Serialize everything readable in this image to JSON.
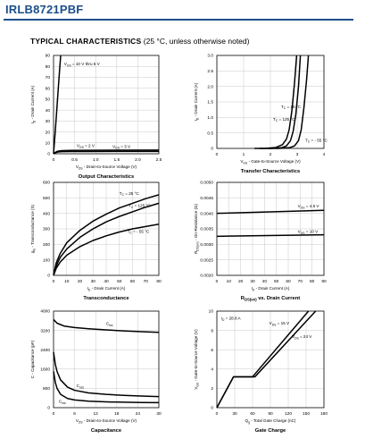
{
  "header": {
    "part_number": "IRLB8721PBF"
  },
  "section": {
    "title": "TYPICAL CHARACTERISTICS",
    "condition": "(25 °C, unless otherwise noted)"
  },
  "chart_data": [
    {
      "id": "output",
      "type": "line",
      "title": "Output Characteristics",
      "xlabel": "V_DS - Drain-to-Source Voltage (V)",
      "ylabel": "I_D - Drain Current (A)",
      "xlim": [
        0,
        2.5
      ],
      "ylim": [
        0,
        90
      ],
      "xticks": [
        "0",
        "0.5",
        "1.0",
        "1.5",
        "2.0",
        "2.5"
      ],
      "yticks": [
        "0",
        "10",
        "20",
        "30",
        "40",
        "50",
        "60",
        "70",
        "80",
        "90"
      ],
      "grid": true,
      "series": [
        {
          "x": [
            0,
            0.04,
            0.08,
            0.12,
            0.15,
            0.17
          ],
          "y": [
            0,
            20,
            42,
            64,
            80,
            90
          ]
        },
        {
          "x": [
            0,
            0.05,
            0.1,
            0.2,
            0.4,
            0.8,
            1.5,
            2.5
          ],
          "y": [
            0,
            1.5,
            2.4,
            2.9,
            3.1,
            3.2,
            3.3,
            3.4
          ]
        },
        {
          "x": [
            0,
            0.05,
            0.1,
            0.2,
            0.4,
            0.8,
            1.5,
            2.5
          ],
          "y": [
            0,
            1.0,
            1.6,
            1.9,
            2.0,
            2.05,
            2.1,
            2.15
          ]
        }
      ],
      "annotations": [
        {
          "text": "V_GS = 10 V thru 5 V",
          "x": 0.25,
          "y": 81
        },
        {
          "text": "V_GS = 2 V",
          "x": 0.55,
          "y": 6
        },
        {
          "text": "V_GS = 3 V",
          "x": 1.4,
          "y": 5.5
        }
      ]
    },
    {
      "id": "transfer",
      "type": "line",
      "title": "Transfer Characteristics",
      "xlabel": "V_GS - Gate-to-Source Voltage (V)",
      "ylabel": "I_D - Drain Current (A)",
      "xlim": [
        0,
        4
      ],
      "ylim": [
        0,
        3
      ],
      "xticks": [
        "0",
        "1",
        "2",
        "3",
        "4"
      ],
      "yticks": [
        "0",
        "0.5",
        "1.0",
        "1.5",
        "2.0",
        "2.5",
        "3.0"
      ],
      "grid": true,
      "series": [
        {
          "name": "T_C = 25 °C",
          "x": [
            1.6,
            2.0,
            2.4,
            2.6,
            2.75,
            2.85,
            2.95,
            3.05,
            3.12
          ],
          "y": [
            0,
            0,
            0.02,
            0.08,
            0.25,
            0.55,
            1.1,
            2.0,
            3.0
          ]
        },
        {
          "name": "T_C = 125 °C",
          "x": [
            1.4,
            1.8,
            2.2,
            2.45,
            2.6,
            2.7,
            2.8,
            2.9,
            2.98
          ],
          "y": [
            0,
            0,
            0.03,
            0.12,
            0.3,
            0.6,
            1.2,
            2.1,
            3.0
          ]
        },
        {
          "name": "T_C = - 55 °C",
          "x": [
            1.9,
            2.3,
            2.7,
            2.9,
            3.05,
            3.15,
            3.25,
            3.35,
            3.42
          ],
          "y": [
            0,
            0,
            0.02,
            0.08,
            0.25,
            0.6,
            1.3,
            2.2,
            3.0
          ]
        }
      ],
      "annotations": [
        {
          "text": "T_C = 25 °C",
          "x": 2.4,
          "y": 1.3
        },
        {
          "text": "T_C = 125 °C",
          "x": 2.1,
          "y": 0.9
        },
        {
          "text": "T_C = - 55 °C",
          "x": 3.3,
          "y": 0.22
        }
      ]
    },
    {
      "id": "transconductance",
      "type": "line",
      "title": "Transconductance",
      "xlabel": "I_D - Drain Current (A)",
      "ylabel": "g_fs - Transconductance (S)",
      "xlim": [
        0,
        80
      ],
      "ylim": [
        0,
        600
      ],
      "xticks": [
        "0",
        "10",
        "20",
        "30",
        "40",
        "50",
        "60",
        "70",
        "80"
      ],
      "yticks": [
        "0",
        "100",
        "200",
        "300",
        "400",
        "500",
        "600"
      ],
      "grid": true,
      "series": [
        {
          "name": "T_C = 25 °C",
          "x": [
            0,
            2,
            5,
            10,
            20,
            30,
            40,
            50,
            60,
            70,
            80
          ],
          "y": [
            0,
            80,
            140,
            210,
            290,
            350,
            395,
            435,
            465,
            495,
            520
          ]
        },
        {
          "name": "T_C = 125 °C",
          "x": [
            0,
            2,
            5,
            10,
            20,
            30,
            40,
            50,
            60,
            70,
            80
          ],
          "y": [
            0,
            60,
            115,
            170,
            245,
            300,
            345,
            380,
            410,
            440,
            465
          ]
        },
        {
          "name": "T_C = - 55 °C",
          "x": [
            0,
            2,
            5,
            10,
            20,
            30,
            40,
            50,
            60,
            70,
            80
          ],
          "y": [
            0,
            45,
            85,
            130,
            185,
            225,
            255,
            280,
            300,
            315,
            330
          ]
        }
      ],
      "annotations": [
        {
          "text": "T_C = 25 °C",
          "x": 50,
          "y": 520
        },
        {
          "text": "T_C = 125 °C",
          "x": 57,
          "y": 440
        },
        {
          "text": "T_C = - 55 °C",
          "x": 56,
          "y": 275
        }
      ]
    },
    {
      "id": "rdson",
      "type": "line",
      "title": "R_DS(on) vs. Drain Current",
      "xlabel": "I_D - Drain Current (A)",
      "ylabel": "R_DS(on) - On-Resistance (Ω)",
      "xlim": [
        0,
        90
      ],
      "ylim": [
        0.002,
        0.005
      ],
      "xticks": [
        "0",
        "10",
        "20",
        "30",
        "40",
        "50",
        "60",
        "70",
        "80",
        "90"
      ],
      "yticks": [
        "0.0020",
        "0.0025",
        "0.0030",
        "0.0035",
        "0.0040",
        "0.0045",
        "0.0050"
      ],
      "grid": true,
      "series": [
        {
          "name": "V_GS = 4.5 V",
          "x": [
            0,
            90
          ],
          "y": [
            0.004,
            0.0041
          ]
        },
        {
          "name": "V_GS = 10 V",
          "x": [
            0,
            90
          ],
          "y": [
            0.00326,
            0.00331
          ]
        }
      ],
      "annotations": [
        {
          "text": "V_GS = 4.5 V",
          "x": 68,
          "y": 0.00419
        },
        {
          "text": "V_GS = 10 V",
          "x": 68,
          "y": 0.00337
        }
      ]
    },
    {
      "id": "capacitance",
      "type": "line",
      "title": "Capacitance",
      "xlabel": "V_DS - Drain-to-Source Voltage (V)",
      "ylabel": "C - Capacitance (pF)",
      "xlim": [
        0,
        30
      ],
      "ylim": [
        0,
        4000
      ],
      "xticks": [
        "0",
        "6",
        "12",
        "18",
        "24",
        "30"
      ],
      "yticks": [
        "0",
        "800",
        "1600",
        "2400",
        "3200",
        "4000"
      ],
      "grid": true,
      "series": [
        {
          "name": "C_iss",
          "x": [
            0,
            1,
            3,
            6,
            10,
            15,
            20,
            25,
            30
          ],
          "y": [
            3650,
            3500,
            3380,
            3320,
            3270,
            3220,
            3180,
            3150,
            3120
          ]
        },
        {
          "name": "C_oss",
          "x": [
            0,
            0.5,
            1,
            2,
            4,
            6,
            10,
            15,
            20,
            25,
            30
          ],
          "y": [
            2300,
            1800,
            1500,
            1150,
            850,
            720,
            610,
            550,
            510,
            480,
            460
          ]
        },
        {
          "name": "C_rss",
          "x": [
            0,
            0.5,
            1,
            2,
            4,
            6,
            10,
            15,
            20,
            25,
            30
          ],
          "y": [
            1500,
            1050,
            800,
            550,
            380,
            320,
            270,
            240,
            225,
            215,
            210
          ]
        }
      ],
      "annotations": [
        {
          "text": "C_iss",
          "x": 15,
          "y": 3420
        },
        {
          "text": "C_oss",
          "x": 6.5,
          "y": 850
        },
        {
          "text": "C_rss",
          "x": 1.5,
          "y": 200
        }
      ]
    },
    {
      "id": "gate_charge",
      "type": "line",
      "title": "Gate Charge",
      "xlabel": "Q_g - Total Gate Charge (nC)",
      "ylabel": "V_GS - Gate-to-Source Voltage (V)",
      "xlim": [
        0,
        180
      ],
      "ylim": [
        0,
        10
      ],
      "xticks": [
        "0",
        "30",
        "60",
        "90",
        "120",
        "150",
        "180"
      ],
      "yticks": [
        "0",
        "2",
        "4",
        "6",
        "8",
        "10"
      ],
      "grid": true,
      "series": [
        {
          "name": "V_DS = 15 V",
          "x": [
            0,
            28,
            60,
            154
          ],
          "y": [
            0,
            3.2,
            3.2,
            10
          ]
        },
        {
          "name": "V_DS = 24 V",
          "x": [
            0,
            28,
            64,
            166
          ],
          "y": [
            0,
            3.2,
            3.2,
            10
          ]
        }
      ],
      "annotations": [
        {
          "text": "I_D = 28.8 A",
          "x": 7,
          "y": 9.1
        },
        {
          "text": "V_DS = 15 V",
          "x": 88,
          "y": 8.6
        },
        {
          "text": "V_DS = 24 V",
          "x": 126,
          "y": 7.2
        }
      ]
    }
  ]
}
